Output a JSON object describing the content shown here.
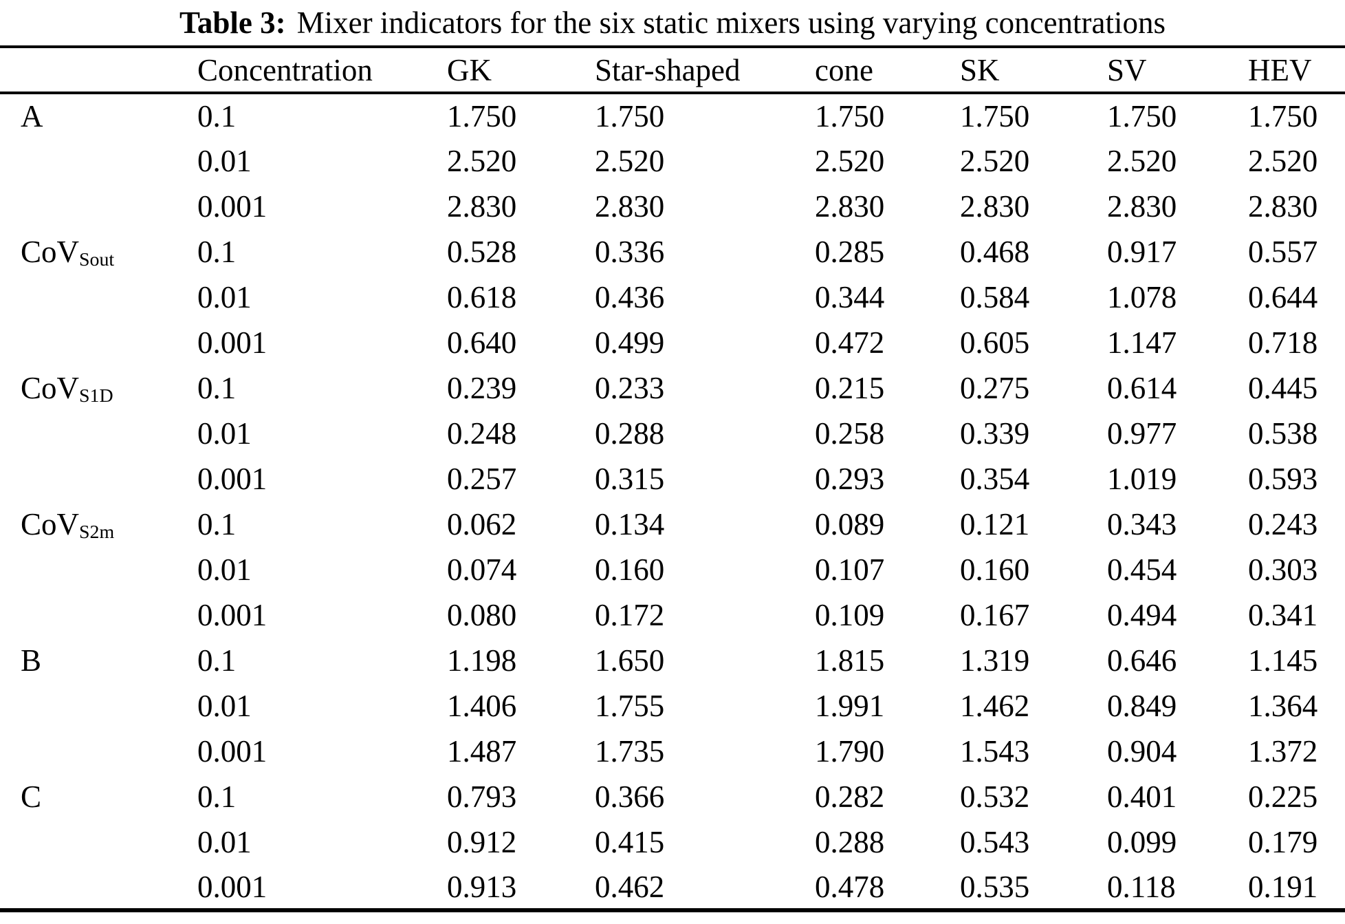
{
  "caption": {
    "label": "Table 3:",
    "text": "Mixer indicators for the six static mixers using varying concentrations"
  },
  "table": {
    "columns": [
      "",
      "Concentration",
      "GK",
      "Star-shaped",
      "cone",
      "SK",
      "SV",
      "HEV"
    ],
    "groups": [
      {
        "label": {
          "base": "A",
          "sub": ""
        },
        "rows": [
          {
            "concentration": "0.1",
            "values": [
              "1.750",
              "1.750",
              "1.750",
              "1.750",
              "1.750",
              "1.750"
            ]
          },
          {
            "concentration": "0.01",
            "values": [
              "2.520",
              "2.520",
              "2.520",
              "2.520",
              "2.520",
              "2.520"
            ]
          },
          {
            "concentration": "0.001",
            "values": [
              "2.830",
              "2.830",
              "2.830",
              "2.830",
              "2.830",
              "2.830"
            ]
          }
        ]
      },
      {
        "label": {
          "base": "CoV",
          "sub": "Sout"
        },
        "rows": [
          {
            "concentration": "0.1",
            "values": [
              "0.528",
              "0.336",
              "0.285",
              "0.468",
              "0.917",
              "0.557"
            ]
          },
          {
            "concentration": "0.01",
            "values": [
              "0.618",
              "0.436",
              "0.344",
              "0.584",
              "1.078",
              "0.644"
            ]
          },
          {
            "concentration": "0.001",
            "values": [
              "0.640",
              "0.499",
              "0.472",
              "0.605",
              "1.147",
              "0.718"
            ]
          }
        ]
      },
      {
        "label": {
          "base": "CoV",
          "sub": "S1D"
        },
        "rows": [
          {
            "concentration": "0.1",
            "values": [
              "0.239",
              "0.233",
              "0.215",
              "0.275",
              "0.614",
              "0.445"
            ]
          },
          {
            "concentration": "0.01",
            "values": [
              "0.248",
              "0.288",
              "0.258",
              "0.339",
              "0.977",
              "0.538"
            ]
          },
          {
            "concentration": "0.001",
            "values": [
              "0.257",
              "0.315",
              "0.293",
              "0.354",
              "1.019",
              "0.593"
            ]
          }
        ]
      },
      {
        "label": {
          "base": "CoV",
          "sub": "S2m"
        },
        "rows": [
          {
            "concentration": "0.1",
            "values": [
              "0.062",
              "0.134",
              "0.089",
              "0.121",
              "0.343",
              "0.243"
            ]
          },
          {
            "concentration": "0.01",
            "values": [
              "0.074",
              "0.160",
              "0.107",
              "0.160",
              "0.454",
              "0.303"
            ]
          },
          {
            "concentration": "0.001",
            "values": [
              "0.080",
              "0.172",
              "0.109",
              "0.167",
              "0.494",
              "0.341"
            ]
          }
        ]
      },
      {
        "label": {
          "base": "B",
          "sub": ""
        },
        "rows": [
          {
            "concentration": "0.1",
            "values": [
              "1.198",
              "1.650",
              "1.815",
              "1.319",
              "0.646",
              "1.145"
            ]
          },
          {
            "concentration": "0.01",
            "values": [
              "1.406",
              "1.755",
              "1.991",
              "1.462",
              "0.849",
              "1.364"
            ]
          },
          {
            "concentration": "0.001",
            "values": [
              "1.487",
              "1.735",
              "1.790",
              "1.543",
              "0.904",
              "1.372"
            ]
          }
        ]
      },
      {
        "label": {
          "base": "C",
          "sub": ""
        },
        "rows": [
          {
            "concentration": "0.1",
            "values": [
              "0.793",
              "0.366",
              "0.282",
              "0.532",
              "0.401",
              "0.225"
            ]
          },
          {
            "concentration": "0.01",
            "values": [
              "0.912",
              "0.415",
              "0.288",
              "0.543",
              "0.099",
              "0.179"
            ]
          },
          {
            "concentration": "0.001",
            "values": [
              "0.913",
              "0.462",
              "0.478",
              "0.535",
              "0.118",
              "0.191"
            ]
          }
        ]
      }
    ]
  }
}
